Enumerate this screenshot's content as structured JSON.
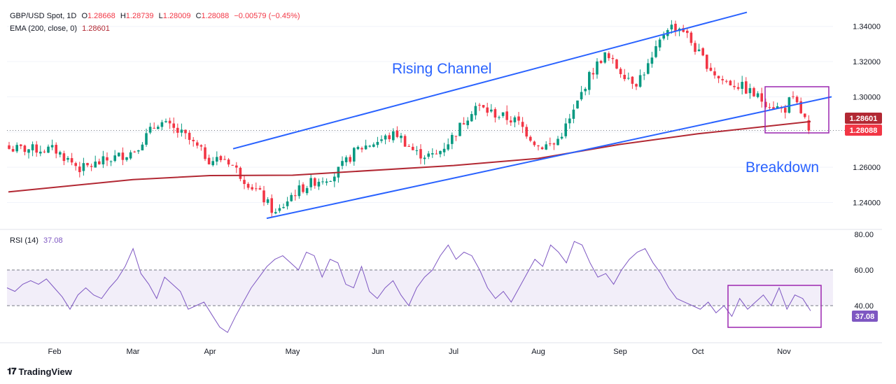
{
  "legend": {
    "symbol": "GBP/USD Spot, 1D",
    "o_label": "O",
    "o": "1.28668",
    "h_label": "H",
    "h": "1.28739",
    "l_label": "L",
    "l": "1.28009",
    "c_label": "C",
    "c": "1.28088",
    "change": "−0.00579 (−0.45%)",
    "ema_label": "EMA (200, close, 0)",
    "ema_value": "1.28601",
    "rsi_label": "RSI (14)",
    "rsi_value": "37.08"
  },
  "annotations": {
    "rising_channel": "Rising Channel",
    "breakdown": "Breakdown"
  },
  "badges": {
    "ema": "1.28601",
    "price": "1.28088",
    "rsi": "37.08"
  },
  "brand": "TradingView",
  "colors": {
    "up": "#089981",
    "down": "#f23645",
    "ema": "#b22833",
    "channel": "#2962ff",
    "rsi": "#7e57c2",
    "box": "#9c27b0"
  },
  "chart_data": [
    {
      "type": "candlestick",
      "title": "GBP/USD Spot, 1D",
      "x_ticks": [
        "Feb",
        "Mar",
        "Apr",
        "May",
        "Jun",
        "Jul",
        "Aug",
        "Sep",
        "Oct",
        "Nov"
      ],
      "y_ticks": [
        "1.24000",
        "1.26000",
        "1.28000",
        "1.30000",
        "1.32000",
        "1.34000"
      ],
      "ylim": [
        1.2255,
        1.351
      ],
      "last": {
        "open": 1.28668,
        "high": 1.28739,
        "low": 1.28009,
        "close": 1.28088
      },
      "close_path": [
        [
          "Jan",
          1.2705
        ],
        [
          "Feb",
          1.27
        ],
        [
          "Feb",
          1.259
        ],
        [
          "Feb",
          1.264
        ],
        [
          "Mar",
          1.269
        ],
        [
          "Mar",
          1.286
        ],
        [
          "Mar",
          1.278
        ],
        [
          "Apr",
          1.264
        ],
        [
          "Apr",
          1.265
        ],
        [
          "Apr",
          1.254
        ],
        [
          "Apr",
          1.245
        ],
        [
          "Apr",
          1.233
        ],
        [
          "May",
          1.245
        ],
        [
          "May",
          1.252
        ],
        [
          "May",
          1.256
        ],
        [
          "May",
          1.27
        ],
        [
          "Jun",
          1.275
        ],
        [
          "Jun",
          1.279
        ],
        [
          "Jun",
          1.268
        ],
        [
          "Jun",
          1.266
        ],
        [
          "Jul",
          1.278
        ],
        [
          "Jul",
          1.295
        ],
        [
          "Jul",
          1.29
        ],
        [
          "Jul",
          1.286
        ],
        [
          "Aug",
          1.272
        ],
        [
          "Aug",
          1.273
        ],
        [
          "Aug",
          1.288
        ],
        [
          "Aug",
          1.31
        ],
        [
          "Aug",
          1.324
        ],
        [
          "Sep",
          1.315
        ],
        [
          "Sep",
          1.308
        ],
        [
          "Sep",
          1.32
        ],
        [
          "Sep",
          1.34
        ],
        [
          "Sep",
          1.339
        ],
        [
          "Oct",
          1.325
        ],
        [
          "Oct",
          1.31
        ],
        [
          "Oct",
          1.306
        ],
        [
          "Oct",
          1.298
        ],
        [
          "Nov",
          1.292
        ],
        [
          "Nov",
          1.299
        ],
        [
          "Nov",
          1.295
        ],
        [
          "Nov",
          1.2809
        ]
      ],
      "series": [
        {
          "name": "EMA (200, close, 0)",
          "type": "line",
          "points": [
            [
              "Jan",
              1.246
            ],
            [
              "Mar",
              1.253
            ],
            [
              "Apr",
              1.2553
            ],
            [
              "May",
              1.2555
            ],
            [
              "Jul",
              1.261
            ],
            [
              "Aug",
              1.265
            ],
            [
              "Sep",
              1.273
            ],
            [
              "Oct",
              1.279
            ],
            [
              "Nov",
              1.286
            ]
          ]
        }
      ],
      "trendlines": [
        {
          "label": "Rising Channel upper",
          "from": [
            "Apr",
            1.2705
          ],
          "to": [
            "Nov",
            1.348
          ]
        },
        {
          "label": "Rising Channel lower",
          "from": [
            "Apr",
            1.231
          ],
          "to": [
            "Nov",
            1.3
          ]
        }
      ],
      "annotations": [
        "Rising Channel",
        "Breakdown"
      ]
    },
    {
      "type": "line",
      "title": "RSI (14)",
      "x_ticks": [
        "Feb",
        "Mar",
        "Apr",
        "May",
        "Jun",
        "Jul",
        "Aug",
        "Sep",
        "Oct",
        "Nov"
      ],
      "y_ticks": [
        "40.00",
        "60.00",
        "80.00"
      ],
      "ylim": [
        20,
        80
      ],
      "bands": [
        40,
        60
      ],
      "series": [
        {
          "name": "RSI (14)",
          "values": [
            50,
            48,
            52,
            54,
            52,
            55,
            50,
            45,
            38,
            46,
            50,
            46,
            44,
            50,
            55,
            62,
            72,
            58,
            52,
            44,
            56,
            52,
            48,
            38,
            40,
            42,
            35,
            28,
            25,
            34,
            42,
            50,
            56,
            62,
            66,
            68,
            64,
            60,
            70,
            68,
            56,
            66,
            64,
            52,
            50,
            62,
            48,
            44,
            50,
            54,
            46,
            40,
            50,
            56,
            60,
            68,
            74,
            66,
            70,
            68,
            60,
            50,
            44,
            48,
            42,
            50,
            58,
            66,
            62,
            74,
            70,
            64,
            76,
            74,
            64,
            56,
            58,
            52,
            60,
            66,
            70,
            72,
            64,
            58,
            50,
            44,
            42,
            40,
            38,
            42,
            36,
            40,
            34,
            44,
            38,
            42,
            46,
            40,
            50,
            38,
            46,
            44,
            37.08
          ]
        }
      ]
    }
  ]
}
